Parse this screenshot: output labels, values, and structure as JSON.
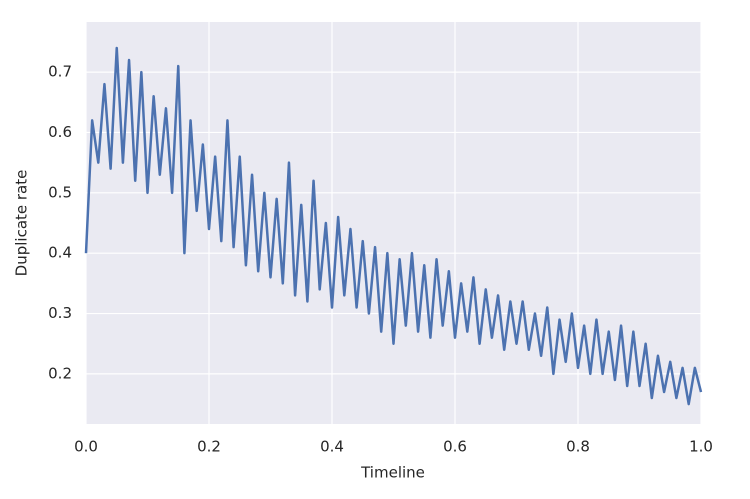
{
  "chart_data": {
    "type": "line",
    "xlabel": "Timeline",
    "ylabel": "Duplicate rate",
    "xlim": [
      0,
      1
    ],
    "ylim": [
      0.117,
      0.783
    ],
    "xticks": [
      {
        "value": 0,
        "label": "0.0"
      },
      0.2,
      0.4,
      0.6,
      0.8,
      {
        "value": 1,
        "label": "1.0"
      }
    ],
    "yticks": [
      0.2,
      0.3,
      0.4,
      0.5,
      0.6,
      0.7
    ],
    "grid": true,
    "x": [
      0,
      0.01,
      0.02,
      0.03,
      0.04,
      0.05,
      0.06,
      0.07,
      0.08,
      0.09,
      0.1,
      0.11,
      0.12,
      0.13,
      0.14,
      0.15,
      0.16,
      0.17,
      0.18,
      0.19,
      0.2,
      0.21,
      0.22,
      0.23,
      0.24,
      0.25,
      0.26,
      0.27,
      0.28,
      0.29,
      0.3,
      0.31,
      0.32,
      0.33,
      0.34,
      0.35,
      0.36,
      0.37,
      0.38,
      0.39,
      0.4,
      0.41,
      0.42,
      0.43,
      0.44,
      0.45,
      0.46,
      0.47,
      0.48,
      0.49,
      0.5,
      0.51,
      0.52,
      0.53,
      0.54,
      0.55,
      0.56,
      0.57,
      0.58,
      0.59,
      0.6,
      0.61,
      0.62,
      0.63,
      0.64,
      0.65,
      0.66,
      0.67,
      0.68,
      0.69,
      0.7,
      0.71,
      0.72,
      0.73,
      0.74,
      0.75,
      0.76,
      0.77,
      0.78,
      0.79,
      0.8,
      0.81,
      0.82,
      0.83,
      0.84,
      0.85,
      0.86,
      0.87,
      0.88,
      0.89,
      0.9,
      0.91,
      0.92,
      0.93,
      0.94,
      0.95,
      0.96,
      0.97,
      0.98,
      0.99,
      1
    ],
    "series": [
      {
        "color": "#4c72b0",
        "values": [
          0.4,
          0.62,
          0.55,
          0.68,
          0.54,
          0.74,
          0.55,
          0.72,
          0.52,
          0.7,
          0.5,
          0.66,
          0.53,
          0.64,
          0.5,
          0.71,
          0.4,
          0.62,
          0.47,
          0.58,
          0.44,
          0.56,
          0.42,
          0.62,
          0.41,
          0.56,
          0.38,
          0.53,
          0.37,
          0.5,
          0.36,
          0.49,
          0.35,
          0.55,
          0.33,
          0.48,
          0.32,
          0.52,
          0.34,
          0.45,
          0.31,
          0.46,
          0.33,
          0.44,
          0.31,
          0.42,
          0.3,
          0.41,
          0.27,
          0.4,
          0.25,
          0.39,
          0.28,
          0.4,
          0.27,
          0.38,
          0.26,
          0.39,
          0.28,
          0.37,
          0.26,
          0.35,
          0.27,
          0.36,
          0.25,
          0.34,
          0.26,
          0.33,
          0.24,
          0.32,
          0.25,
          0.32,
          0.24,
          0.3,
          0.23,
          0.31,
          0.2,
          0.29,
          0.22,
          0.3,
          0.21,
          0.28,
          0.2,
          0.29,
          0.2,
          0.27,
          0.19,
          0.28,
          0.18,
          0.27,
          0.18,
          0.25,
          0.16,
          0.23,
          0.17,
          0.22,
          0.16,
          0.21,
          0.15,
          0.21,
          0.17
        ]
      }
    ]
  }
}
